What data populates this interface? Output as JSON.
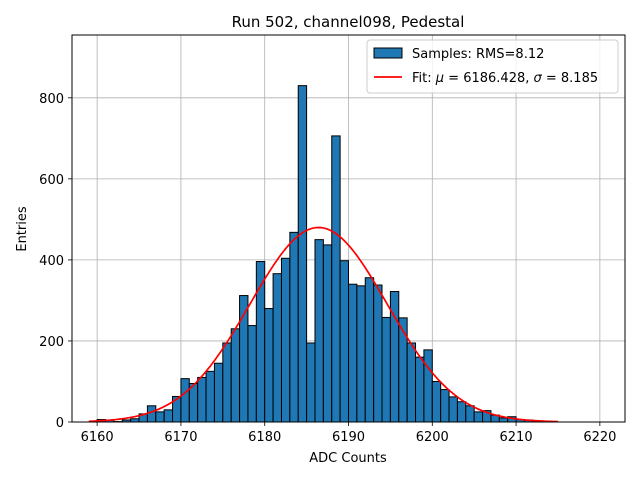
{
  "chart_data": {
    "type": "bar",
    "title": "Run 502, channel098, Pedestal",
    "xlabel": "ADC Counts",
    "ylabel": "Entries",
    "xlim": [
      6157,
      6223
    ],
    "ylim": [
      0,
      955
    ],
    "xticks": [
      6160,
      6170,
      6180,
      6190,
      6200,
      6210,
      6220
    ],
    "yticks": [
      0,
      200,
      400,
      600,
      800
    ],
    "grid": true,
    "legend_position": "top-right",
    "bin_width": 1,
    "bar_color": "#1f77b4",
    "fit_color": "#ff0000",
    "histogram": {
      "name": "Samples: RMS=8.12",
      "bin_starts": [
        6160,
        6161,
        6162,
        6163,
        6164,
        6165,
        6166,
        6167,
        6168,
        6169,
        6170,
        6171,
        6172,
        6173,
        6174,
        6175,
        6176,
        6177,
        6178,
        6179,
        6180,
        6181,
        6182,
        6183,
        6184,
        6185,
        6186,
        6187,
        6188,
        6189,
        6190,
        6191,
        6192,
        6193,
        6194,
        6195,
        6196,
        6197,
        6198,
        6199,
        6200,
        6201,
        6202,
        6203,
        6204,
        6205,
        6206,
        6207,
        6208,
        6209,
        6210,
        6211
      ],
      "values": [
        6,
        5,
        1,
        5,
        8,
        20,
        40,
        25,
        30,
        63,
        107,
        95,
        110,
        125,
        145,
        195,
        230,
        312,
        238,
        396,
        280,
        366,
        404,
        468,
        830,
        195,
        450,
        437,
        706,
        398,
        340,
        336,
        356,
        338,
        258,
        322,
        257,
        195,
        160,
        178,
        100,
        80,
        62,
        50,
        40,
        25,
        28,
        17,
        10,
        13,
        6,
        5
      ]
    },
    "fit": {
      "name_prefix": "Fit: ",
      "mu_symbol": "μ",
      "sigma_symbol": "σ",
      "mu": 6186.428,
      "sigma": 8.185,
      "amplitude": 480,
      "x_range": [
        6159,
        6215
      ]
    }
  }
}
